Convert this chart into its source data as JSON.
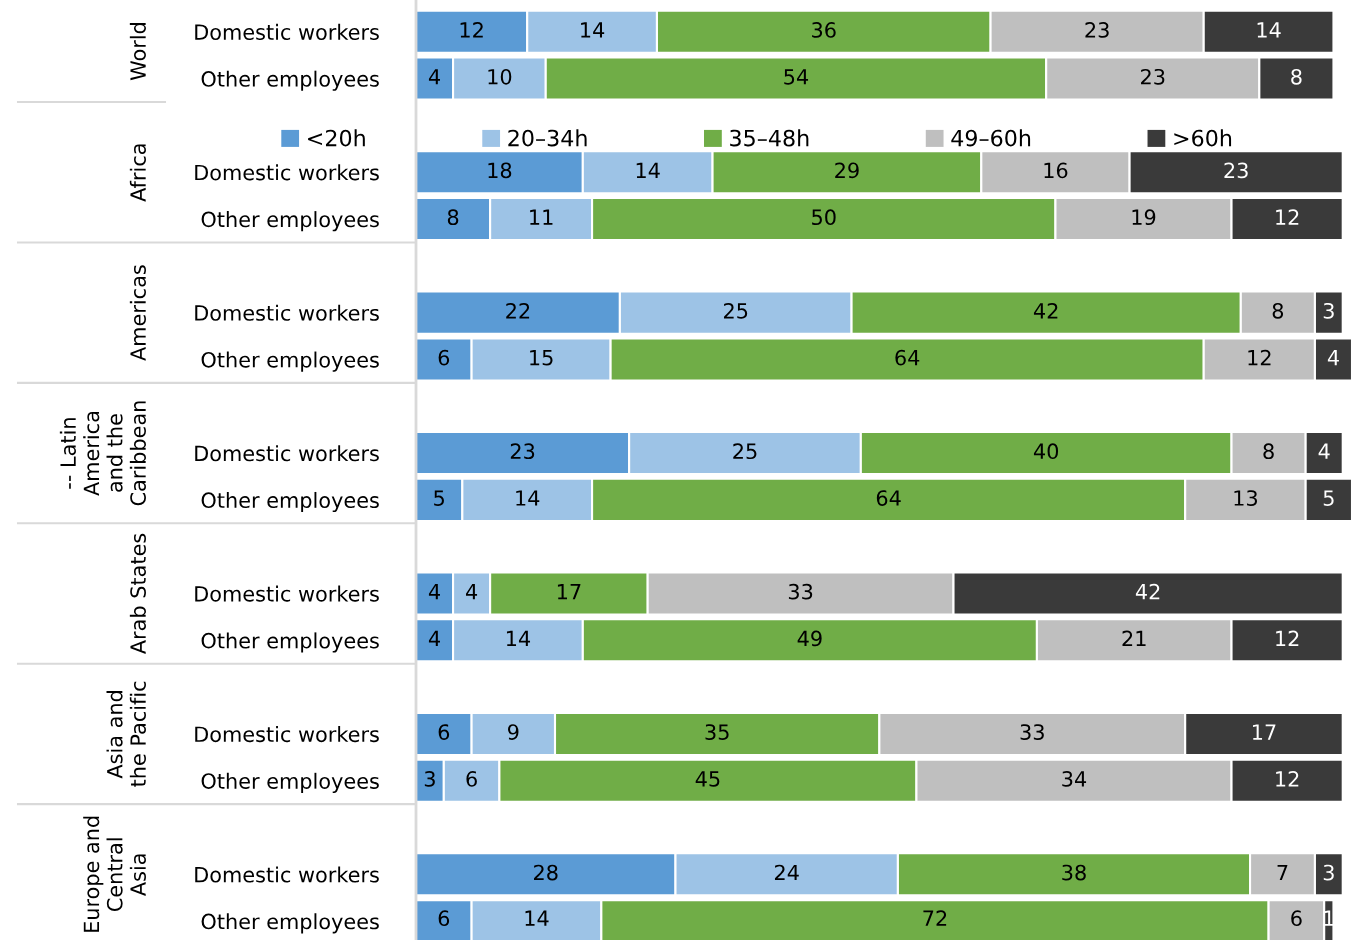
{
  "chart_data": {
    "type": "bar",
    "orientation": "horizontal",
    "stacked": true,
    "data_labels": true,
    "legend": "top",
    "grid": false,
    "categories": [
      "Domestic workers",
      "Other employees",
      "Domestic workers",
      "Other employees",
      "Domestic workers",
      "Other employees",
      "Domestic workers",
      "Other employees",
      "Domestic workers",
      "Other employees",
      "Domestic workers",
      "Other employees",
      "Domestic workers",
      "Other employees"
    ],
    "annotations": [
      "World",
      "Africa",
      "Americas",
      "-- Latin\nAmerica\nand the\nCaribbean",
      "Arab States",
      "Asia and\nthe Pacific",
      "Europe and\nCentral\nAsia"
    ],
    "xlim": [
      0,
      101
    ],
    "series": [
      {
        "name": "<20h",
        "color": "#5b9bd5",
        "values": [
          12,
          4,
          18,
          8,
          22,
          6,
          23,
          5,
          4,
          4,
          6,
          3,
          28,
          6
        ]
      },
      {
        "name": "20–34h",
        "color": "#9dc3e6",
        "values": [
          14,
          10,
          14,
          11,
          25,
          15,
          25,
          14,
          4,
          14,
          9,
          6,
          24,
          14
        ]
      },
      {
        "name": "35–48h",
        "color": "#70ad47",
        "values": [
          36,
          54,
          29,
          50,
          42,
          64,
          40,
          64,
          17,
          49,
          35,
          45,
          38,
          72
        ]
      },
      {
        "name": "49–60h",
        "color": "#bfbfbf",
        "values": [
          23,
          23,
          16,
          19,
          8,
          12,
          8,
          13,
          33,
          21,
          33,
          34,
          7,
          6
        ]
      },
      {
        "name": ">60h",
        "color": "#3a3a3a",
        "values": [
          14,
          8,
          23,
          12,
          3,
          4,
          4,
          5,
          42,
          12,
          17,
          12,
          3,
          1
        ]
      }
    ]
  }
}
